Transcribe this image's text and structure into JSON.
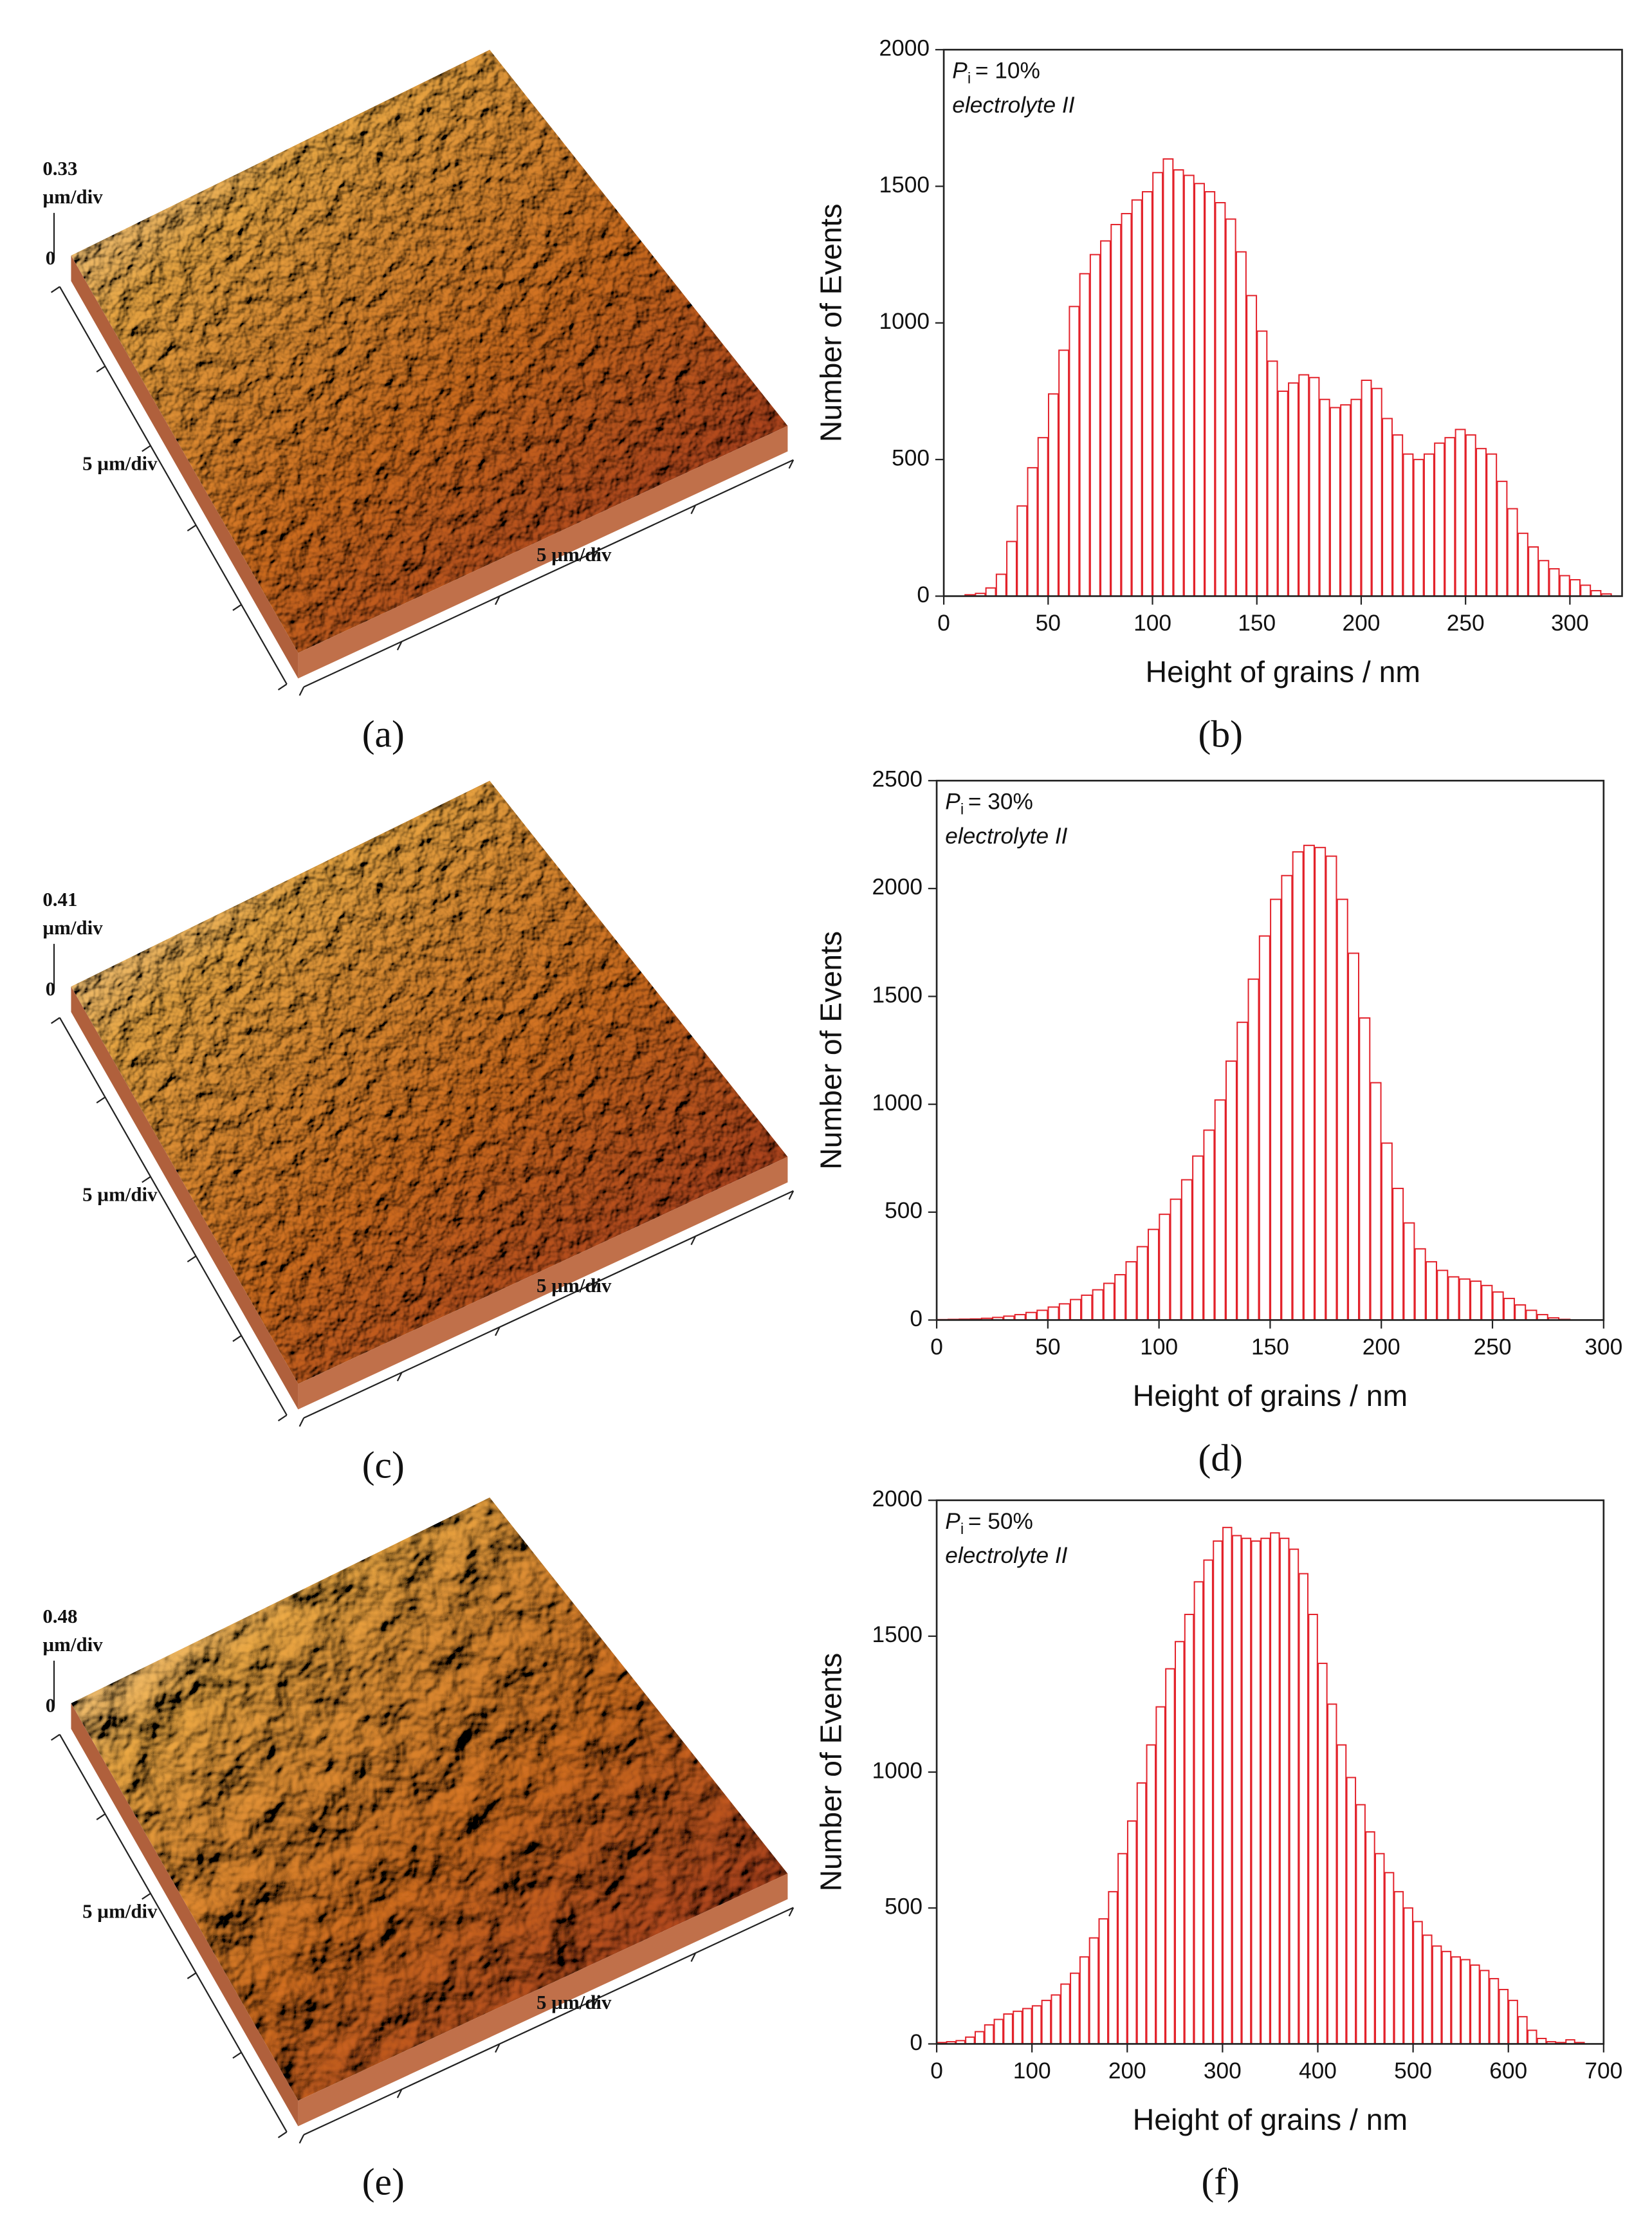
{
  "chart_data": [
    {
      "type": "histogram",
      "panel_label": "(b)",
      "annotation": {
        "symbol": "P",
        "subscript": "i",
        "text": "= 10%",
        "note": "electrolyte II"
      },
      "xlabel": "Height of grains / nm",
      "ylabel": "Number of Events",
      "color": "#e3222b",
      "bins": [
        10,
        15,
        20,
        25,
        30,
        35,
        40,
        45,
        50,
        55,
        60,
        65,
        70,
        75,
        80,
        85,
        90,
        95,
        100,
        105,
        110,
        115,
        120,
        125,
        130,
        135,
        140,
        145,
        150,
        155,
        160,
        165,
        170,
        175,
        180,
        185,
        190,
        195,
        200,
        205,
        210,
        215,
        220,
        225,
        230,
        235,
        240,
        245,
        250,
        255,
        260,
        265,
        270,
        275,
        280,
        285,
        290,
        295,
        300,
        305,
        310,
        315,
        320
      ],
      "values": [
        5,
        10,
        30,
        80,
        200,
        330,
        470,
        580,
        740,
        900,
        1060,
        1180,
        1250,
        1300,
        1360,
        1400,
        1450,
        1480,
        1550,
        1600,
        1560,
        1540,
        1510,
        1480,
        1440,
        1380,
        1260,
        1100,
        970,
        860,
        750,
        780,
        810,
        800,
        720,
        690,
        700,
        720,
        790,
        760,
        650,
        590,
        520,
        500,
        520,
        560,
        580,
        610,
        590,
        540,
        520,
        420,
        320,
        230,
        180,
        130,
        100,
        75,
        60,
        40,
        20,
        8
      ],
      "xlim": [
        0,
        325
      ],
      "xticks": [
        0,
        50,
        100,
        150,
        200,
        250,
        300
      ],
      "ylim": [
        0,
        2000
      ],
      "yticks": [
        0,
        500,
        1000,
        1500,
        2000
      ]
    },
    {
      "type": "histogram",
      "panel_label": "(d)",
      "annotation": {
        "symbol": "P",
        "subscript": "i",
        "text": "= 30%",
        "note": "electrolyte II"
      },
      "xlabel": "Height of grains / nm",
      "ylabel": "Number of Events",
      "color": "#e3222b",
      "bins": [
        0,
        5,
        10,
        15,
        20,
        25,
        30,
        35,
        40,
        45,
        50,
        55,
        60,
        65,
        70,
        75,
        80,
        85,
        90,
        95,
        100,
        105,
        110,
        115,
        120,
        125,
        130,
        135,
        140,
        145,
        150,
        155,
        160,
        165,
        170,
        175,
        180,
        185,
        190,
        195,
        200,
        205,
        210,
        215,
        220,
        225,
        230,
        235,
        240,
        245,
        250,
        255,
        260,
        265,
        270,
        275,
        280,
        285
      ],
      "values": [
        2,
        3,
        4,
        5,
        8,
        12,
        18,
        25,
        35,
        45,
        60,
        75,
        95,
        115,
        140,
        170,
        210,
        270,
        340,
        420,
        490,
        560,
        650,
        760,
        880,
        1020,
        1200,
        1380,
        1580,
        1780,
        1950,
        2060,
        2170,
        2200,
        2190,
        2150,
        1950,
        1700,
        1400,
        1100,
        820,
        610,
        450,
        330,
        270,
        230,
        200,
        190,
        180,
        160,
        130,
        100,
        70,
        45,
        25,
        10,
        3
      ],
      "xlim": [
        0,
        300
      ],
      "xticks": [
        0,
        50,
        100,
        150,
        200,
        250,
        300
      ],
      "ylim": [
        0,
        2500
      ],
      "yticks": [
        0,
        500,
        1000,
        1500,
        2000,
        2500
      ]
    },
    {
      "type": "histogram",
      "panel_label": "(f)",
      "annotation": {
        "symbol": "P",
        "subscript": "i",
        "text": "= 50%",
        "note": "electrolyte II"
      },
      "xlabel": "Height of grains / nm",
      "ylabel": "Number of Events",
      "color": "#e3222b",
      "bins": [
        0,
        10,
        20,
        30,
        40,
        50,
        60,
        70,
        80,
        90,
        100,
        110,
        120,
        130,
        140,
        150,
        160,
        170,
        180,
        190,
        200,
        210,
        220,
        230,
        240,
        250,
        260,
        270,
        280,
        290,
        300,
        310,
        320,
        330,
        340,
        350,
        360,
        370,
        380,
        390,
        400,
        410,
        420,
        430,
        440,
        450,
        460,
        470,
        480,
        490,
        500,
        510,
        520,
        530,
        540,
        550,
        560,
        570,
        580,
        590,
        600,
        610,
        620,
        630,
        640,
        650,
        660,
        670,
        680
      ],
      "values": [
        5,
        8,
        12,
        25,
        45,
        70,
        90,
        110,
        120,
        130,
        140,
        160,
        180,
        220,
        260,
        320,
        390,
        460,
        560,
        700,
        820,
        960,
        1100,
        1240,
        1380,
        1480,
        1580,
        1700,
        1780,
        1850,
        1900,
        1870,
        1860,
        1850,
        1860,
        1880,
        1860,
        1820,
        1730,
        1580,
        1400,
        1250,
        1100,
        980,
        880,
        780,
        700,
        630,
        560,
        500,
        450,
        400,
        360,
        340,
        320,
        310,
        290,
        270,
        240,
        200,
        160,
        100,
        50,
        20,
        8,
        5,
        15,
        5
      ],
      "xlim": [
        0,
        700
      ],
      "xticks": [
        0,
        100,
        200,
        300,
        400,
        500,
        600,
        700
      ],
      "ylim": [
        0,
        2000
      ],
      "yticks": [
        0,
        500,
        1000,
        1500,
        2000
      ]
    }
  ],
  "afm_images": [
    {
      "panel_label": "(a)",
      "z_scale": "0.33",
      "z_unit": "µm/div",
      "z_zero": "0",
      "x_label": "5 µm/div",
      "y_label": "5 µm/div"
    },
    {
      "panel_label": "(c)",
      "z_scale": "0.41",
      "z_unit": "µm/div",
      "z_zero": "0",
      "x_label": "5 µm/div",
      "y_label": "5 µm/div"
    },
    {
      "panel_label": "(e)",
      "z_scale": "0.48",
      "z_unit": "µm/div",
      "z_zero": "0",
      "x_label": "5 µm/div",
      "y_label": "5 µm/div"
    }
  ]
}
